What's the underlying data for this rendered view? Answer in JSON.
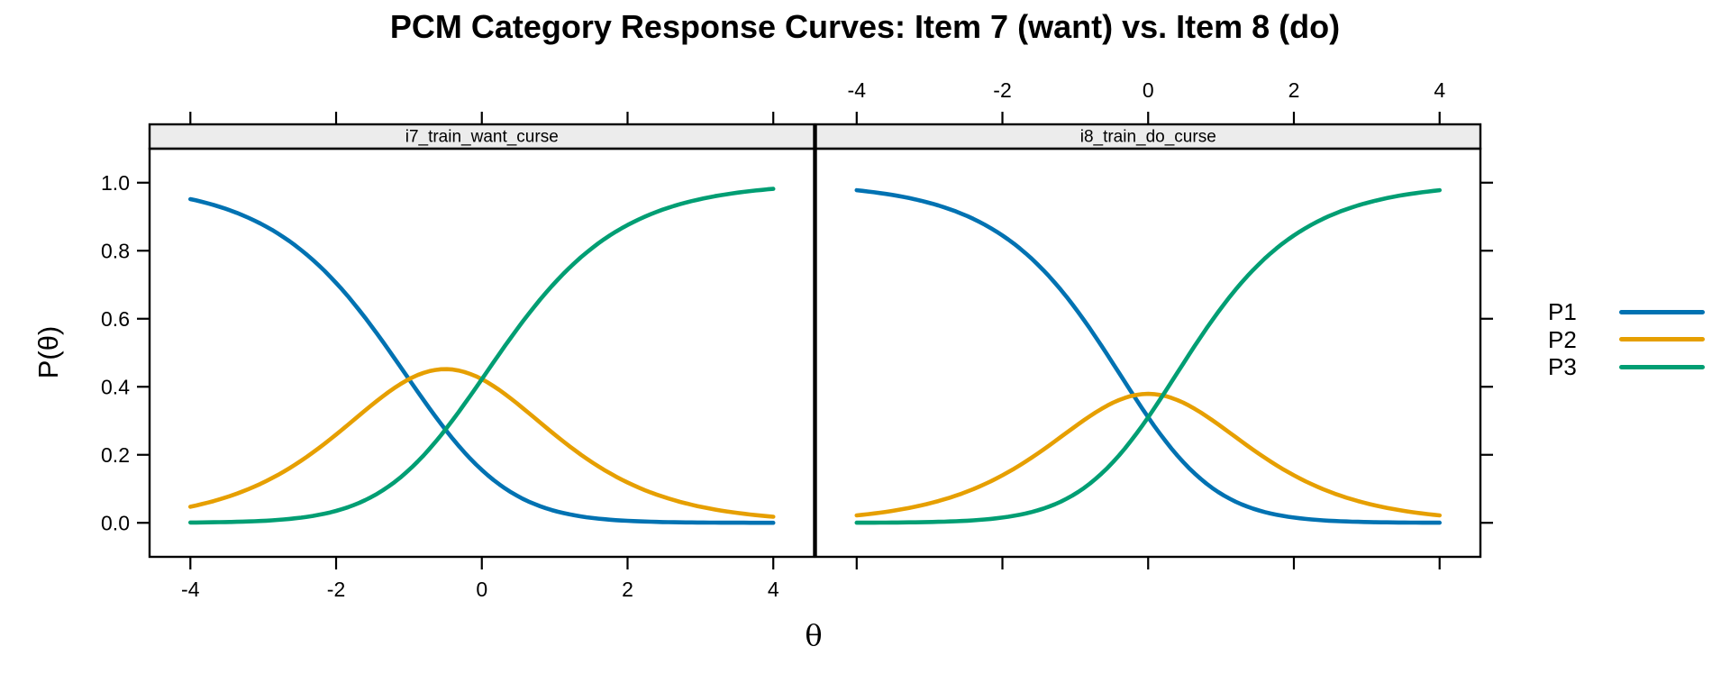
{
  "title": "PCM Category Response Curves: Item 7 (want) vs. Item 8 (do)",
  "axis_labels": {
    "x": "θ",
    "y": "P(θ)"
  },
  "legend": {
    "position": "right",
    "entries": [
      {
        "label": "P1",
        "color": "#0072B2"
      },
      {
        "label": "P2",
        "color": "#E69F00"
      },
      {
        "label": "P3",
        "color": "#009E73"
      }
    ]
  },
  "axes": {
    "x_tick_labels": [
      "-4",
      "-2",
      "0",
      "2",
      "4"
    ],
    "x_tick_values": [
      -4,
      -2,
      0,
      2,
      4
    ],
    "y_tick_labels": [
      "0.0",
      "0.2",
      "0.4",
      "0.6",
      "0.8",
      "1.0"
    ],
    "y_tick_values": [
      0,
      0.2,
      0.4,
      0.6,
      0.8,
      1.0
    ],
    "bottom_labels_on_panel": "left",
    "top_labels_on_panel": "right"
  },
  "styles": {
    "strip_fill": "#ECECEC",
    "frame_color": "#000000",
    "background": "#FFFFFF"
  },
  "chart_data": {
    "type": "line",
    "title": "PCM Category Response Curves: Item 7 (want) vs. Item 8 (do)",
    "xlabel": "θ",
    "ylabel": "P(θ)",
    "xlim": [
      -4.56,
      4.56
    ],
    "ylim": [
      -0.1,
      1.1
    ],
    "grid": false,
    "legend_position": "right",
    "x": [
      -4,
      -3,
      -2,
      -1,
      0,
      1,
      2,
      3,
      4
    ],
    "facets": [
      {
        "strip_label": "i7_train_want_curse",
        "model": "PCM",
        "deltas": [
          -1.0,
          0.0
        ],
        "series": [
          {
            "name": "P1",
            "color": "#0072B2",
            "values": [
              0.952,
              0.876,
              0.705,
              0.422,
              0.155,
              0.035,
              0.006,
              0.001,
              0.0
            ]
          },
          {
            "name": "P2",
            "color": "#E69F00",
            "values": [
              0.047,
              0.119,
              0.26,
              0.422,
              0.422,
              0.26,
              0.119,
              0.047,
              0.018
            ]
          },
          {
            "name": "P3",
            "color": "#009E73",
            "values": [
              0.001,
              0.006,
              0.035,
              0.155,
              0.422,
              0.705,
              0.876,
              0.952,
              0.982
            ]
          }
        ]
      },
      {
        "strip_label": "i8_train_do_curse",
        "model": "PCM",
        "deltas": [
          -0.2,
          0.2
        ],
        "series": [
          {
            "name": "P1",
            "color": "#0072B2",
            "values": [
              0.978,
              0.94,
              0.845,
              0.631,
              0.31,
              0.085,
              0.016,
              0.002,
              0.0
            ]
          },
          {
            "name": "P2",
            "color": "#E69F00",
            "values": [
              0.022,
              0.057,
              0.14,
              0.284,
              0.379,
              0.284,
              0.14,
              0.057,
              0.022
            ]
          },
          {
            "name": "P3",
            "color": "#009E73",
            "values": [
              0.0,
              0.002,
              0.016,
              0.085,
              0.31,
              0.631,
              0.845,
              0.94,
              0.978
            ]
          }
        ]
      }
    ]
  }
}
